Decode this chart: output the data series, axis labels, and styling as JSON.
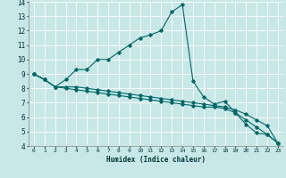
{
  "xlabel": "Humidex (Indice chaleur)",
  "ylabel": "",
  "xlim": [
    -0.5,
    23.5
  ],
  "ylim": [
    4,
    14
  ],
  "xticks": [
    0,
    1,
    2,
    3,
    4,
    5,
    6,
    7,
    8,
    9,
    10,
    11,
    12,
    13,
    14,
    15,
    16,
    17,
    18,
    19,
    20,
    21,
    22,
    23
  ],
  "yticks": [
    4,
    5,
    6,
    7,
    8,
    9,
    10,
    11,
    12,
    13,
    14
  ],
  "bg_color": "#c8e8e8",
  "grid_color": "#ffffff",
  "line_color": "#006666",
  "lines": [
    {
      "x": [
        0,
        1,
        2,
        3,
        4,
        5,
        6,
        7,
        8,
        9,
        10,
        11,
        12,
        13,
        14,
        15,
        16,
        17,
        18,
        19,
        20,
        21,
        22,
        23
      ],
      "y": [
        9.0,
        8.6,
        8.1,
        8.6,
        9.3,
        9.3,
        10.0,
        10.0,
        10.5,
        11.0,
        11.5,
        11.7,
        12.0,
        13.3,
        13.8,
        8.5,
        7.4,
        6.9,
        7.1,
        6.3,
        5.5,
        4.9,
        4.8,
        4.2
      ]
    },
    {
      "x": [
        0,
        1,
        2,
        3,
        4,
        5,
        6,
        7,
        8,
        9,
        10,
        11,
        12,
        13,
        14,
        15,
        16,
        17,
        18,
        19,
        20,
        21,
        22,
        23
      ],
      "y": [
        9.0,
        8.6,
        8.1,
        8.1,
        8.1,
        8.0,
        7.9,
        7.8,
        7.7,
        7.6,
        7.5,
        7.4,
        7.3,
        7.2,
        7.1,
        7.0,
        6.9,
        6.8,
        6.7,
        6.5,
        6.2,
        5.8,
        5.4,
        4.2
      ]
    },
    {
      "x": [
        0,
        1,
        2,
        3,
        4,
        5,
        6,
        7,
        8,
        9,
        10,
        11,
        12,
        13,
        14,
        15,
        16,
        17,
        18,
        19,
        20,
        21,
        22,
        23
      ],
      "y": [
        9.0,
        8.6,
        8.1,
        8.0,
        7.9,
        7.8,
        7.7,
        7.6,
        7.5,
        7.4,
        7.3,
        7.2,
        7.1,
        7.0,
        6.9,
        6.8,
        6.7,
        6.7,
        6.6,
        6.3,
        5.8,
        5.3,
        4.8,
        4.2
      ]
    }
  ]
}
